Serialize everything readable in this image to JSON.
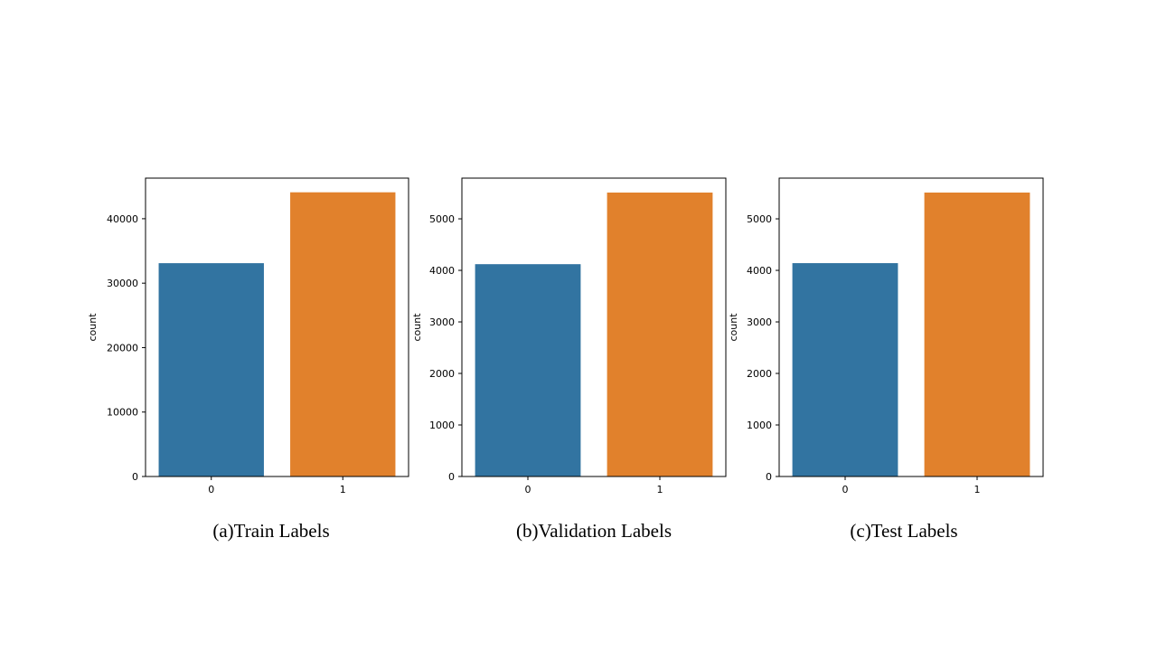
{
  "chart_data": [
    {
      "type": "bar",
      "caption": "(a)Train Labels",
      "categories": [
        "0",
        "1"
      ],
      "values": [
        33100,
        44100
      ],
      "colors": [
        "#3274a1",
        "#e1812c"
      ],
      "xlabel": "",
      "ylabel": "count",
      "ylim": [
        0,
        46300
      ],
      "yticks": [
        0,
        10000,
        20000,
        30000,
        40000
      ],
      "ytick_labels": [
        "0",
        "10000",
        "20000",
        "30000",
        "40000"
      ],
      "grid": false
    },
    {
      "type": "bar",
      "caption": "(b)Validation Labels",
      "categories": [
        "0",
        "1"
      ],
      "values": [
        4120,
        5510
      ],
      "colors": [
        "#3274a1",
        "#e1812c"
      ],
      "xlabel": "",
      "ylabel": "count",
      "ylim": [
        0,
        5790
      ],
      "yticks": [
        0,
        1000,
        2000,
        3000,
        4000,
        5000
      ],
      "ytick_labels": [
        "0",
        "1000",
        "2000",
        "3000",
        "4000",
        "5000"
      ],
      "grid": false
    },
    {
      "type": "bar",
      "caption": "(c)Test Labels",
      "categories": [
        "0",
        "1"
      ],
      "values": [
        4140,
        5510
      ],
      "colors": [
        "#3274a1",
        "#e1812c"
      ],
      "xlabel": "",
      "ylabel": "count",
      "ylim": [
        0,
        5790
      ],
      "yticks": [
        0,
        1000,
        2000,
        3000,
        4000,
        5000
      ],
      "ytick_labels": [
        "0",
        "1000",
        "2000",
        "3000",
        "4000",
        "5000"
      ],
      "grid": false
    }
  ]
}
